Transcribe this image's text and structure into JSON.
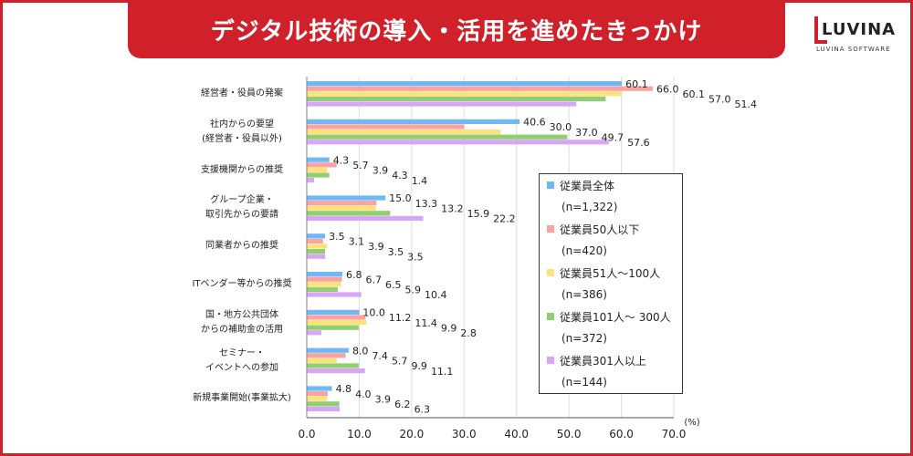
{
  "title": "デジタル技術の導入・活用を進めたきっかけ",
  "logo": {
    "name": "LUVINA",
    "sub": "LUVINA SOFTWARE"
  },
  "chart_data": {
    "type": "bar",
    "orientation": "horizontal",
    "unit_label": "(%)",
    "xlim": [
      0,
      70
    ],
    "xticks": [
      "0.0",
      "10.0",
      "20.0",
      "30.0",
      "40.0",
      "50.0",
      "60.0",
      "70.0"
    ],
    "grid": true,
    "legend_position": "right",
    "categories": [
      [
        "経営者・役員の発案"
      ],
      [
        "社内からの要望",
        "(経営者・役員以外)"
      ],
      [
        "支援機関からの推奨"
      ],
      [
        "グループ企業・",
        "取引先からの要請"
      ],
      [
        "同業者からの推奨"
      ],
      [
        "ITベンダー等からの推奨"
      ],
      [
        "国・地方公共団体",
        "からの補助金の活用"
      ],
      [
        "セミナー・",
        "イベントへの参加"
      ],
      [
        "新規事業開始(事業拡大)"
      ]
    ],
    "series": [
      {
        "name": "従業員全体",
        "n": "(n=1,322)",
        "color": "#6fb8f5",
        "values": [
          60.1,
          40.6,
          4.3,
          15.0,
          3.5,
          6.8,
          10.0,
          8.0,
          4.8
        ]
      },
      {
        "name": "従業員50人以下",
        "n": "(n=420)",
        "color": "#fba3a3",
        "values": [
          66.0,
          30.0,
          5.7,
          13.3,
          3.1,
          6.7,
          11.2,
          7.4,
          4.0
        ]
      },
      {
        "name": "従業員51人～100人",
        "n": "(n=386)",
        "color": "#fde27a",
        "values": [
          60.1,
          37.0,
          3.9,
          13.2,
          3.9,
          6.5,
          11.4,
          5.7,
          3.9
        ]
      },
      {
        "name": "従業員101人～ 300人",
        "n": "(n=372)",
        "color": "#8fcf72",
        "values": [
          57.0,
          49.7,
          4.3,
          15.9,
          3.5,
          5.9,
          9.9,
          9.9,
          6.2
        ]
      },
      {
        "name": "従業員301人以上",
        "n": "(n=144)",
        "color": "#d7a6f5",
        "values": [
          51.4,
          57.6,
          1.4,
          22.2,
          3.5,
          10.4,
          2.8,
          11.1,
          6.3
        ]
      }
    ]
  }
}
